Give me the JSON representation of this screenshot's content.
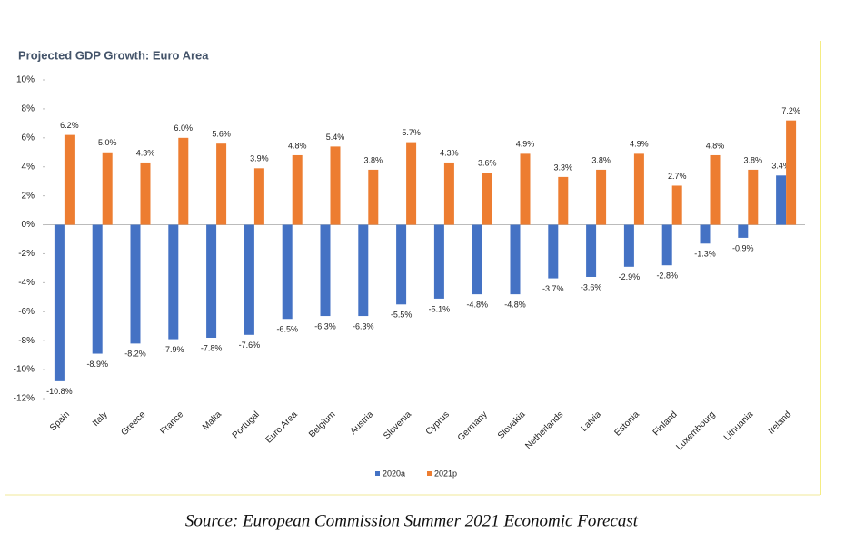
{
  "chart_data": {
    "type": "bar",
    "title": "Projected GDP Growth: Euro Area",
    "source": "Source: European Commission Summer 2021 Economic Forecast",
    "categories": [
      "Spain",
      "Italy",
      "Greece",
      "France",
      "Malta",
      "Portugal",
      "Euro Area",
      "Belgium",
      "Austria",
      "Slovenia",
      "Cyprus",
      "Germany",
      "Slovakia",
      "Netherlands",
      "Latvia",
      "Estonia",
      "Finland",
      "Luxembourg",
      "Lithuania",
      "Ireland"
    ],
    "series": [
      {
        "name": "2020a",
        "color": "#4472c4",
        "values": [
          -10.8,
          -8.9,
          -8.2,
          -7.9,
          -7.8,
          -7.6,
          -6.5,
          -6.3,
          -6.3,
          -5.5,
          -5.1,
          -4.8,
          -4.8,
          -3.7,
          -3.6,
          -2.9,
          -2.8,
          -1.3,
          -0.9,
          3.4
        ],
        "value_labels": [
          "-10.8%",
          "-8.9%",
          "-8.2%",
          "-7.9%",
          "-7.8%",
          "-7.6%",
          "-6.5%",
          "-6.3%",
          "-6.3%",
          "-5.5%",
          "-5.1%",
          "-4.8%",
          "-4.8%",
          "-3.7%",
          "-3.6%",
          "-2.9%",
          "-2.8%",
          "-1.3%",
          "-0.9%",
          "3.4%"
        ]
      },
      {
        "name": "2021p",
        "color": "#ed7d31",
        "values": [
          6.2,
          5.0,
          4.3,
          6.0,
          5.6,
          3.9,
          4.8,
          5.4,
          3.8,
          5.7,
          4.3,
          3.6,
          4.9,
          3.3,
          3.8,
          4.9,
          2.7,
          4.8,
          3.8,
          7.2
        ],
        "value_labels": [
          "6.2%",
          "5.0%",
          "4.3%",
          "6.0%",
          "5.6%",
          "3.9%",
          "4.8%",
          "5.4%",
          "3.8%",
          "5.7%",
          "4.3%",
          "3.6%",
          "4.9%",
          "3.3%",
          "3.8%",
          "4.9%",
          "2.7%",
          "4.8%",
          "3.8%",
          "7.2%"
        ]
      }
    ],
    "ylim": [
      -12,
      10
    ],
    "yticks": [
      {
        "value": 10,
        "label": "10%"
      },
      {
        "value": 8,
        "label": "8%"
      },
      {
        "value": 6,
        "label": "6%"
      },
      {
        "value": 4,
        "label": "4%"
      },
      {
        "value": 2,
        "label": "2%"
      },
      {
        "value": 0,
        "label": "0%"
      },
      {
        "value": -2,
        "label": "-2%"
      },
      {
        "value": -4,
        "label": "-4%"
      },
      {
        "value": -6,
        "label": "-6%"
      },
      {
        "value": -8,
        "label": "-8%"
      },
      {
        "value": -10,
        "label": "-10%"
      },
      {
        "value": -12,
        "label": "-12%"
      }
    ],
    "grid": false,
    "legend": "bottom"
  }
}
